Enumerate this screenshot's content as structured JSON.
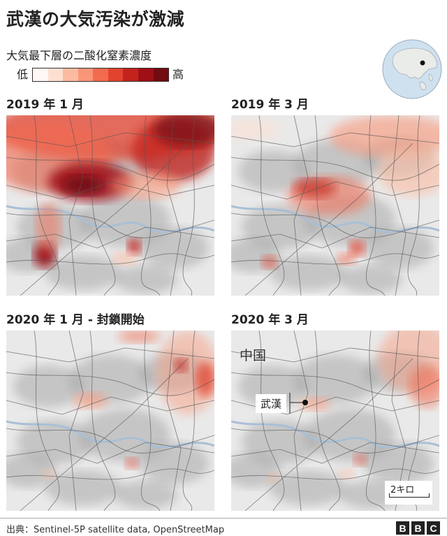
{
  "title": "武漢の大気汚染が激減",
  "legend": {
    "title": "大気最下層の二酸化窒素濃度",
    "low_label": "低",
    "high_label": "高",
    "colors": [
      "#fff7f3",
      "#fde0d2",
      "#fbbba1",
      "#f99678",
      "#f36b4f",
      "#e2432e",
      "#c4221d",
      "#9e1016",
      "#720b12"
    ]
  },
  "panels": [
    {
      "title": "2019 年 1 月",
      "pollution": "very_high"
    },
    {
      "title": "2019 年 3 月",
      "pollution": "medium"
    },
    {
      "title": "2020 年 1 月 - 封鎖開始",
      "pollution": "low"
    },
    {
      "title": "2020 年 3 月",
      "pollution": "low"
    }
  ],
  "map_labels": {
    "country": "中国",
    "city": "武漢",
    "scale": "2キロ"
  },
  "footer": {
    "source": "出典：Sentinel-5P satellite data, OpenStreetMap",
    "brand": [
      "B",
      "B",
      "C"
    ]
  }
}
